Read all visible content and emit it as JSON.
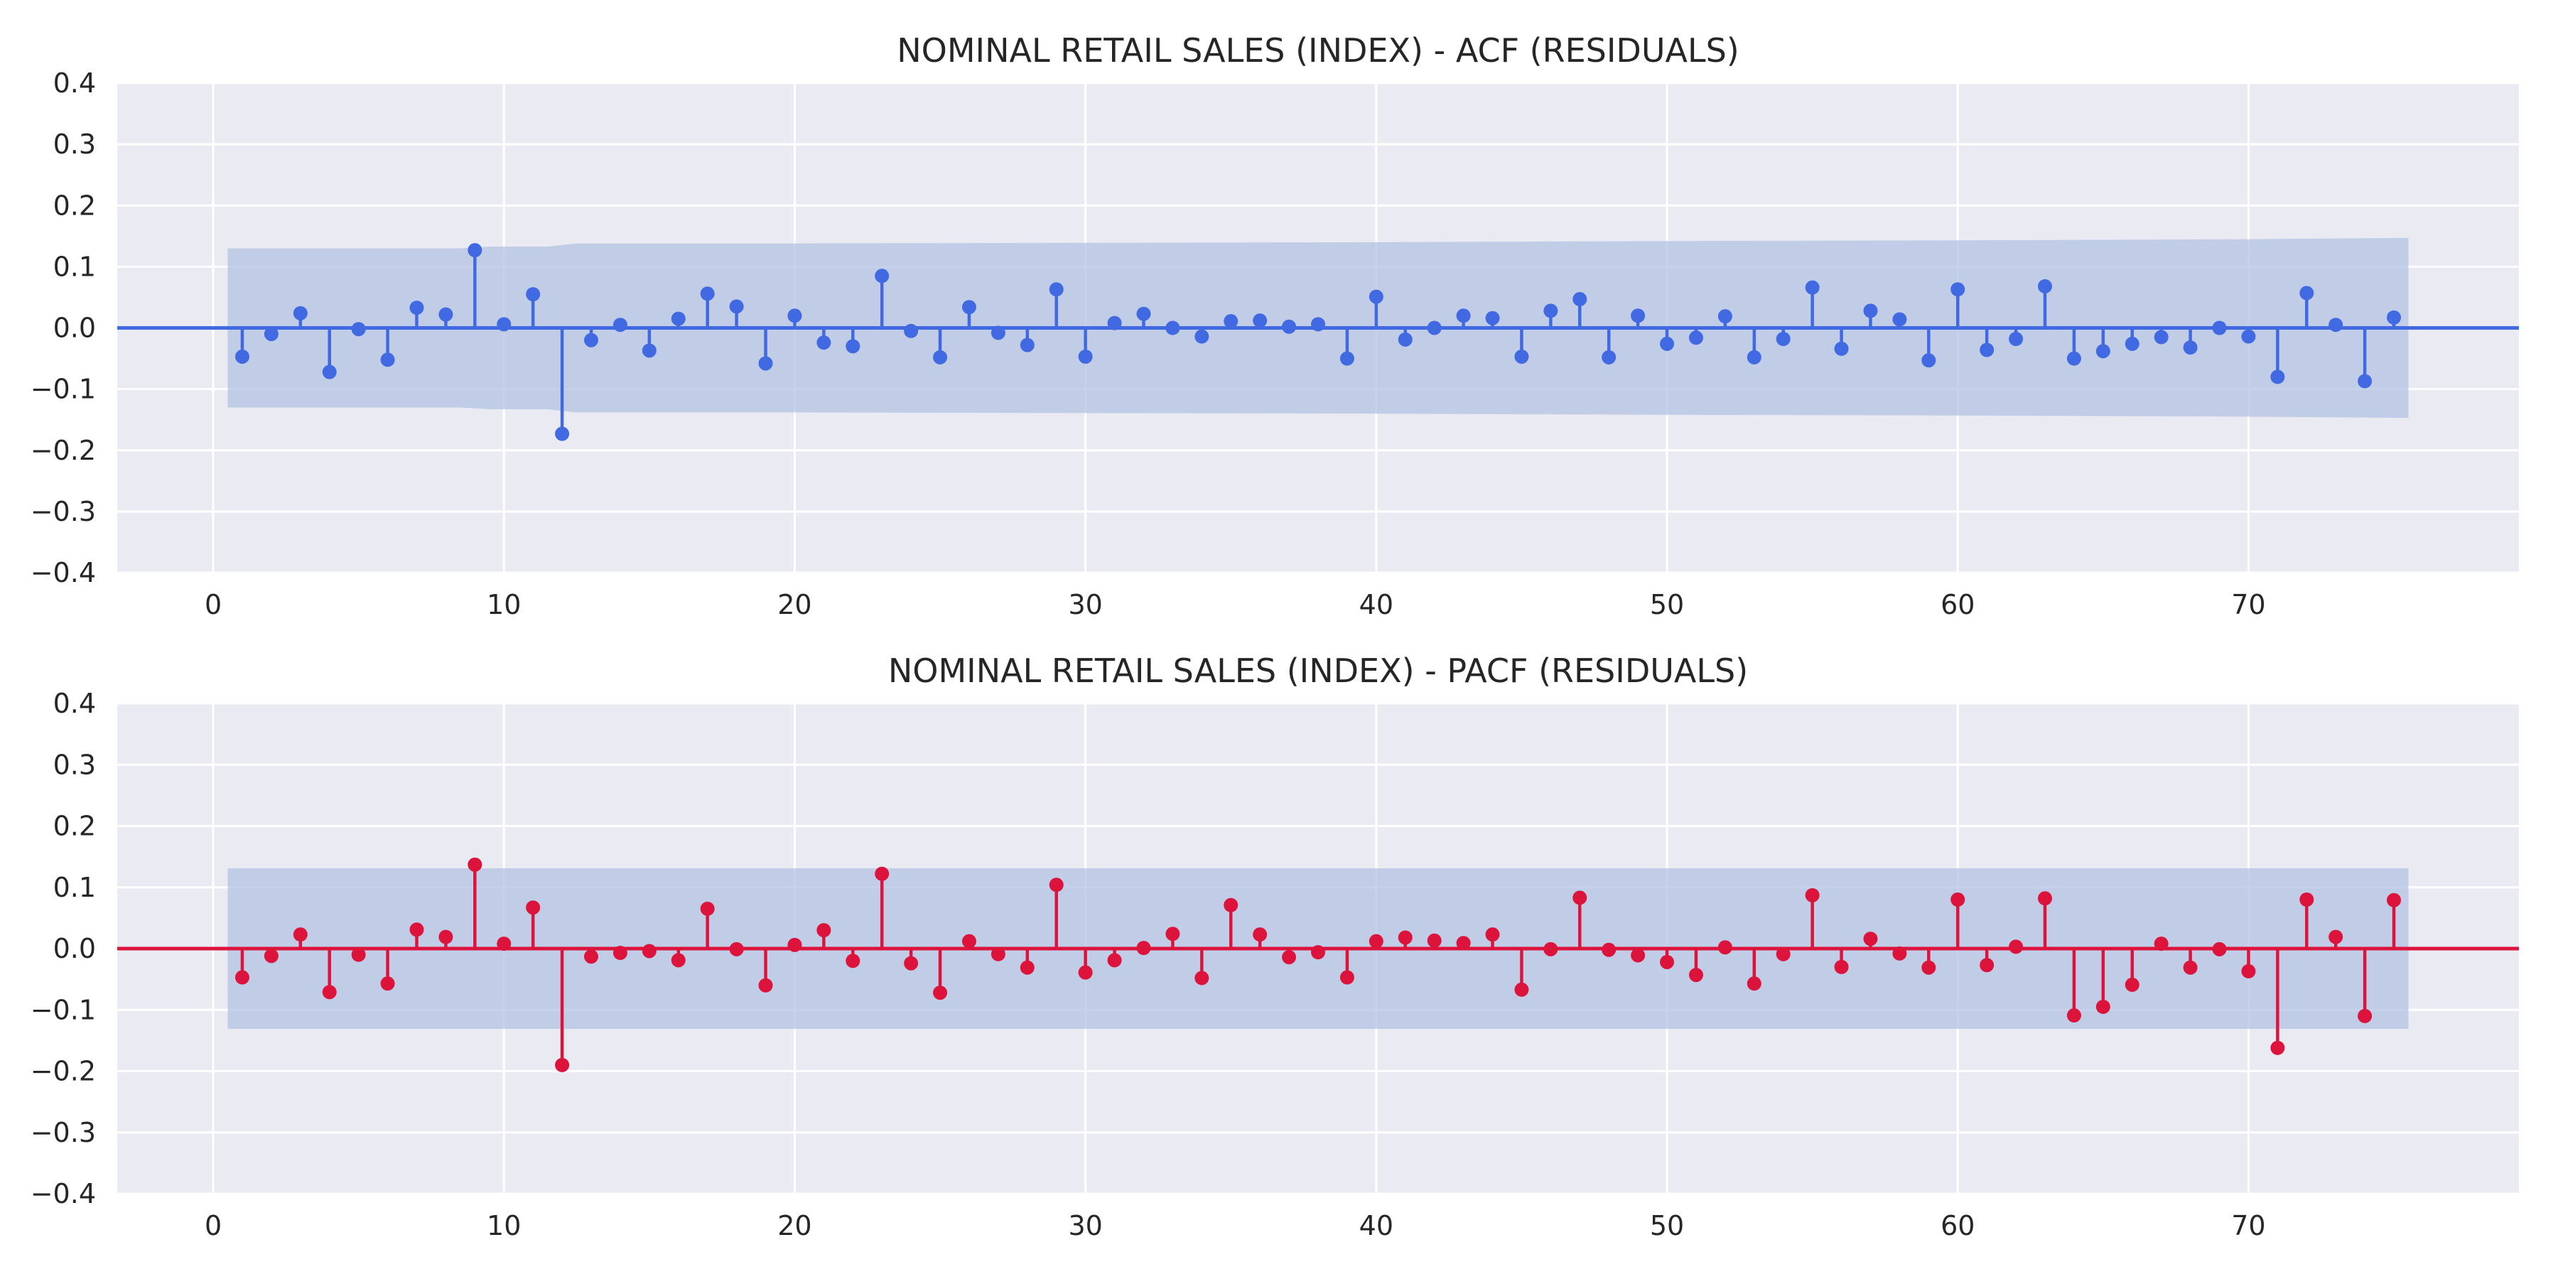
{
  "chart_data": [
    {
      "type": "stem",
      "title": "NOMINAL RETAIL SALES (INDEX) - ACF (RESIDUALS)",
      "xlabel": "",
      "ylabel": "",
      "xlim": [
        -3.3,
        79.3
      ],
      "ylim": [
        -0.4,
        0.4
      ],
      "x_ticks": [
        0,
        10,
        20,
        30,
        40,
        50,
        60,
        70
      ],
      "y_ticks": [
        -0.4,
        -0.3,
        -0.2,
        -0.1,
        0.0,
        0.1,
        0.2,
        0.3,
        0.4
      ],
      "grid": true,
      "legend": "none",
      "colors": {
        "series": "#4169e1",
        "band": "#b3c1e3",
        "panel": "#eaeaf2",
        "grid": "#ffffff"
      },
      "lags": [
        1,
        2,
        3,
        4,
        5,
        6,
        7,
        8,
        9,
        10,
        11,
        12,
        13,
        14,
        15,
        16,
        17,
        18,
        19,
        20,
        21,
        22,
        23,
        24,
        25,
        26,
        27,
        28,
        29,
        30,
        31,
        32,
        33,
        34,
        35,
        36,
        37,
        38,
        39,
        40,
        41,
        42,
        43,
        44,
        45,
        46,
        47,
        48,
        49,
        50,
        51,
        52,
        53,
        54,
        55,
        56,
        57,
        58,
        59,
        60,
        61,
        62,
        63,
        64,
        65,
        66,
        67,
        68,
        69,
        70,
        71,
        72,
        73,
        74,
        75
      ],
      "values": [
        -0.047,
        -0.01,
        0.024,
        -0.072,
        -0.002,
        -0.052,
        0.033,
        0.022,
        0.127,
        0.006,
        0.055,
        -0.173,
        -0.02,
        0.005,
        -0.037,
        0.015,
        0.056,
        0.035,
        -0.058,
        0.02,
        -0.024,
        -0.03,
        0.085,
        -0.005,
        -0.048,
        0.034,
        -0.008,
        -0.028,
        0.063,
        -0.047,
        0.008,
        0.023,
        0.0,
        -0.014,
        0.011,
        0.012,
        0.002,
        0.006,
        -0.05,
        0.051,
        -0.019,
        0.0,
        0.02,
        0.016,
        -0.047,
        0.028,
        0.047,
        -0.048,
        0.02,
        -0.026,
        -0.016,
        0.019,
        -0.048,
        -0.018,
        0.066,
        -0.034,
        0.028,
        0.014,
        -0.053,
        0.063,
        -0.036,
        -0.018,
        0.068,
        -0.05,
        -0.038,
        -0.026,
        -0.015,
        -0.032,
        0.0,
        -0.014,
        -0.08,
        0.057,
        0.005,
        -0.087,
        0.017
      ],
      "confidence_band": {
        "x": [
          0.5,
          8.5,
          9.5,
          11.5,
          12.5,
          20,
          30,
          40,
          50,
          60,
          70,
          75.5
        ],
        "upper": [
          0.13,
          0.13,
          0.133,
          0.133,
          0.138,
          0.138,
          0.139,
          0.14,
          0.142,
          0.143,
          0.145,
          0.147
        ],
        "lower": [
          -0.13,
          -0.13,
          -0.133,
          -0.133,
          -0.138,
          -0.138,
          -0.139,
          -0.14,
          -0.142,
          -0.143,
          -0.145,
          -0.147
        ]
      }
    },
    {
      "type": "stem",
      "title": "NOMINAL RETAIL SALES (INDEX) - PACF (RESIDUALS)",
      "xlabel": "",
      "ylabel": "",
      "xlim": [
        -3.3,
        79.3
      ],
      "ylim": [
        -0.4,
        0.4
      ],
      "x_ticks": [
        0,
        10,
        20,
        30,
        40,
        50,
        60,
        70
      ],
      "y_ticks": [
        -0.4,
        -0.3,
        -0.2,
        -0.1,
        0.0,
        0.1,
        0.2,
        0.3,
        0.4
      ],
      "grid": true,
      "legend": "none",
      "colors": {
        "series": "#dc143c",
        "band": "#b3c1e3",
        "panel": "#eaeaf2",
        "grid": "#ffffff"
      },
      "lags": [
        1,
        2,
        3,
        4,
        5,
        6,
        7,
        8,
        9,
        10,
        11,
        12,
        13,
        14,
        15,
        16,
        17,
        18,
        19,
        20,
        21,
        22,
        23,
        24,
        25,
        26,
        27,
        28,
        29,
        30,
        31,
        32,
        33,
        34,
        35,
        36,
        37,
        38,
        39,
        40,
        41,
        42,
        43,
        44,
        45,
        46,
        47,
        48,
        49,
        50,
        51,
        52,
        53,
        54,
        55,
        56,
        57,
        58,
        59,
        60,
        61,
        62,
        63,
        64,
        65,
        66,
        67,
        68,
        69,
        70,
        71,
        72,
        73,
        74,
        75
      ],
      "values": [
        -0.047,
        -0.012,
        0.023,
        -0.071,
        -0.01,
        -0.057,
        0.031,
        0.019,
        0.137,
        0.008,
        0.067,
        -0.19,
        -0.013,
        -0.007,
        -0.004,
        -0.019,
        0.065,
        -0.001,
        -0.06,
        0.006,
        0.03,
        -0.02,
        0.122,
        -0.024,
        -0.072,
        0.012,
        -0.009,
        -0.031,
        0.104,
        -0.039,
        -0.019,
        0.001,
        0.024,
        -0.048,
        0.071,
        0.023,
        -0.014,
        -0.006,
        -0.047,
        0.012,
        0.018,
        0.013,
        0.009,
        0.023,
        -0.067,
        -0.001,
        0.083,
        -0.002,
        -0.011,
        -0.022,
        -0.043,
        0.002,
        -0.057,
        -0.009,
        0.087,
        -0.03,
        0.016,
        -0.008,
        -0.031,
        0.08,
        -0.027,
        0.003,
        0.082,
        -0.109,
        -0.095,
        -0.059,
        0.008,
        -0.031,
        -0.001,
        -0.037,
        -0.162,
        0.08,
        0.019,
        -0.11,
        0.079
      ],
      "confidence_band": {
        "x": [
          0.5,
          75.5
        ],
        "upper": [
          0.131,
          0.131
        ],
        "lower": [
          -0.131,
          -0.131
        ]
      }
    }
  ]
}
